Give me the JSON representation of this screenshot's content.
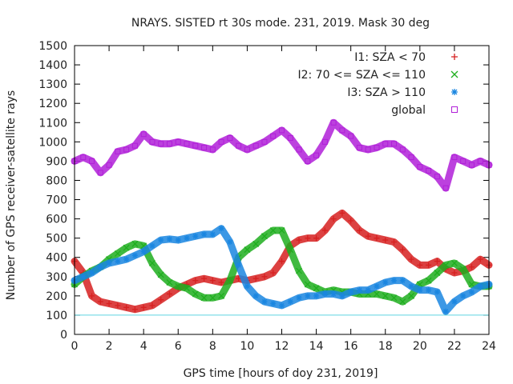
{
  "chart_data": {
    "type": "scatter",
    "title": "NRAYS. SISTED rt 30s mode. 231, 2019. Mask 30 deg",
    "xlabel": "GPS time [hours of doy 231, 2019]",
    "ylabel": "Number of GPS receiver-satellite rays",
    "xlim": [
      0,
      24
    ],
    "ylim": [
      0,
      1500
    ],
    "x_ticks": [
      0,
      2,
      4,
      6,
      8,
      10,
      12,
      14,
      16,
      18,
      20,
      22,
      24
    ],
    "y_ticks": [
      0,
      100,
      200,
      300,
      400,
      500,
      600,
      700,
      800,
      900,
      1000,
      1100,
      1200,
      1300,
      1400,
      1500
    ],
    "legend_position": "top-right",
    "reference_line": {
      "y": 100,
      "color": "#5fd4e0"
    },
    "series": [
      {
        "name": "I1: SZA < 70",
        "marker": "+",
        "color": "#d62020",
        "x": [
          0,
          0.5,
          1,
          1.5,
          2,
          2.5,
          3,
          3.5,
          4,
          4.5,
          5,
          5.5,
          6,
          6.5,
          7,
          7.5,
          8,
          8.5,
          9,
          9.5,
          10,
          10.5,
          11,
          11.5,
          12,
          12.5,
          13,
          13.5,
          14,
          14.5,
          15,
          15.5,
          16,
          16.5,
          17,
          17.5,
          18,
          18.5,
          19,
          19.5,
          20,
          20.5,
          21,
          21.5,
          22,
          22.5,
          23,
          23.5,
          24
        ],
        "y": [
          380,
          320,
          200,
          170,
          160,
          150,
          140,
          130,
          140,
          150,
          180,
          210,
          240,
          260,
          280,
          290,
          280,
          270,
          280,
          290,
          280,
          290,
          300,
          320,
          380,
          460,
          490,
          500,
          500,
          540,
          600,
          630,
          590,
          540,
          510,
          500,
          490,
          480,
          440,
          390,
          360,
          360,
          380,
          340,
          320,
          330,
          350,
          390,
          360
        ]
      },
      {
        "name": "I2: 70 <= SZA <= 110",
        "marker": "x",
        "color": "#1fae1f",
        "x": [
          0,
          0.5,
          1,
          1.5,
          2,
          2.5,
          3,
          3.5,
          4,
          4.5,
          5,
          5.5,
          6,
          6.5,
          7,
          7.5,
          8,
          8.5,
          9,
          9.5,
          10,
          10.5,
          11,
          11.5,
          12,
          12.5,
          13,
          13.5,
          14,
          14.5,
          15,
          15.5,
          16,
          16.5,
          17,
          17.5,
          18,
          18.5,
          19,
          19.5,
          20,
          20.5,
          21,
          21.5,
          22,
          22.5,
          23,
          23.5,
          24
        ],
        "y": [
          260,
          300,
          330,
          350,
          390,
          420,
          450,
          470,
          460,
          370,
          310,
          270,
          250,
          240,
          210,
          190,
          190,
          200,
          280,
          400,
          440,
          470,
          510,
          540,
          540,
          440,
          330,
          260,
          240,
          220,
          230,
          220,
          220,
          210,
          210,
          210,
          200,
          190,
          170,
          200,
          260,
          280,
          320,
          360,
          370,
          340,
          260,
          250,
          250
        ]
      },
      {
        "name": "I3: SZA > 110",
        "marker": "*",
        "color": "#1a86e0",
        "x": [
          0,
          0.5,
          1,
          1.5,
          2,
          2.5,
          3,
          3.5,
          4,
          4.5,
          5,
          5.5,
          6,
          6.5,
          7,
          7.5,
          8,
          8.5,
          9,
          9.5,
          10,
          10.5,
          11,
          11.5,
          12,
          12.5,
          13,
          13.5,
          14,
          14.5,
          15,
          15.5,
          16,
          16.5,
          17,
          17.5,
          18,
          18.5,
          19,
          19.5,
          20,
          20.5,
          21,
          21.5,
          22,
          22.5,
          23,
          23.5,
          24
        ],
        "y": [
          280,
          300,
          320,
          350,
          370,
          380,
          390,
          410,
          430,
          460,
          490,
          495,
          490,
          500,
          510,
          520,
          520,
          550,
          480,
          360,
          250,
          200,
          170,
          160,
          150,
          170,
          190,
          200,
          200,
          210,
          210,
          200,
          220,
          230,
          230,
          250,
          270,
          280,
          280,
          250,
          230,
          230,
          220,
          120,
          170,
          200,
          220,
          250,
          260
        ]
      },
      {
        "name": "global",
        "marker": "square",
        "color": "#b020d8",
        "x": [
          0,
          0.5,
          1,
          1.5,
          2,
          2.5,
          3,
          3.5,
          4,
          4.5,
          5,
          5.5,
          6,
          6.5,
          7,
          7.5,
          8,
          8.5,
          9,
          9.5,
          10,
          10.5,
          11,
          11.5,
          12,
          12.5,
          13,
          13.5,
          14,
          14.5,
          15,
          15.5,
          16,
          16.5,
          17,
          17.5,
          18,
          18.5,
          19,
          19.5,
          20,
          20.5,
          21,
          21.5,
          22,
          22.5,
          23,
          23.5,
          24
        ],
        "y": [
          900,
          920,
          900,
          840,
          880,
          950,
          960,
          980,
          1040,
          1000,
          990,
          990,
          1000,
          990,
          980,
          970,
          960,
          1000,
          1020,
          980,
          960,
          980,
          1000,
          1030,
          1060,
          1020,
          960,
          900,
          930,
          1000,
          1100,
          1060,
          1030,
          970,
          960,
          970,
          990,
          990,
          960,
          920,
          870,
          850,
          820,
          760,
          920,
          900,
          880,
          900,
          880
        ]
      }
    ]
  }
}
